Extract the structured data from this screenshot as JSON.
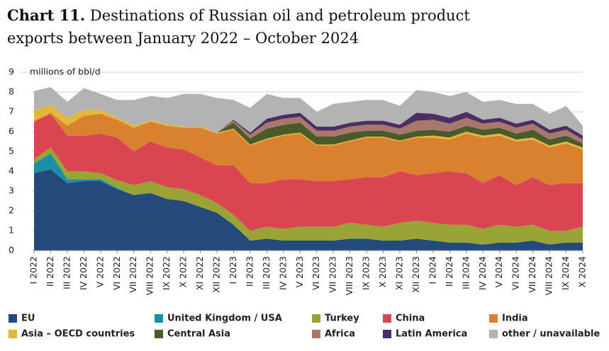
{
  "chart_data": {
    "type": "stacked_area",
    "title_label": "Chart 11.",
    "title": "Destinations of Russian oil and petroleum product exports between January 2022 – October 2024",
    "y_label": "millions of bbl/d",
    "categories": [
      "I 2022",
      "II 2022",
      "III 2022",
      "IV 2022",
      "V 2022",
      "VI 2022",
      "VII 2022",
      "VIII 2022",
      "IX 2022",
      "X 2022",
      "XI 2022",
      "XII 2022",
      "I 2023",
      "II 2023",
      "III 2023",
      "IV 2023",
      "V 2023",
      "VI 2023",
      "VII 2023",
      "VIII 2023",
      "IX 2023",
      "X 2023",
      "XI 2023",
      "XII 2023",
      "I 2024",
      "II 2024",
      "III 2024",
      "IV 2024",
      "V 2024",
      "VI 2024",
      "VII 2024",
      "VIII 2024",
      "IX 2024",
      "X 2024"
    ],
    "ylim": [
      0,
      9
    ],
    "yticks": [
      0,
      1,
      2,
      3,
      4,
      5,
      6,
      7,
      8,
      9
    ],
    "grid": true,
    "series": [
      {
        "name": "EU",
        "color": "#234a7a",
        "values": [
          3.9,
          4.1,
          3.4,
          3.5,
          3.5,
          3.1,
          2.8,
          2.9,
          2.6,
          2.5,
          2.2,
          1.9,
          1.3,
          0.5,
          0.6,
          0.5,
          0.5,
          0.5,
          0.5,
          0.6,
          0.6,
          0.5,
          0.5,
          0.6,
          0.5,
          0.4,
          0.4,
          0.3,
          0.4,
          0.4,
          0.5,
          0.3,
          0.4,
          0.4
        ]
      },
      {
        "name": "United Kingdom / USA",
        "color": "#1a8fa8",
        "values": [
          0.5,
          0.8,
          0.2,
          0.1,
          0.1,
          0.05,
          0,
          0,
          0,
          0,
          0,
          0,
          0,
          0,
          0,
          0,
          0,
          0,
          0,
          0,
          0,
          0,
          0,
          0,
          0,
          0,
          0,
          0,
          0,
          0,
          0,
          0,
          0,
          0
        ]
      },
      {
        "name": "Turkey",
        "color": "#9aa436",
        "values": [
          0.2,
          0.3,
          0.4,
          0.4,
          0.3,
          0.4,
          0.5,
          0.6,
          0.6,
          0.6,
          0.6,
          0.5,
          0.5,
          0.5,
          0.6,
          0.6,
          0.7,
          0.7,
          0.7,
          0.8,
          0.7,
          0.7,
          0.9,
          0.9,
          0.9,
          0.9,
          0.9,
          0.8,
          0.9,
          0.8,
          0.8,
          0.7,
          0.6,
          0.8
        ]
      },
      {
        "name": "China",
        "color": "#d94651",
        "values": [
          1.9,
          1.7,
          1.8,
          1.8,
          2.0,
          2.15,
          1.7,
          2.0,
          2.0,
          2.0,
          1.9,
          1.9,
          2.5,
          2.4,
          2.2,
          2.5,
          2.4,
          2.3,
          2.3,
          2.2,
          2.4,
          2.5,
          2.6,
          2.3,
          2.5,
          2.7,
          2.6,
          2.3,
          2.5,
          2.1,
          2.4,
          2.3,
          2.4,
          2.2
        ]
      },
      {
        "name": "India",
        "color": "#d9812f",
        "values": [
          0.05,
          0.05,
          0.5,
          1.0,
          1.0,
          0.9,
          1.2,
          1.0,
          1.1,
          1.1,
          1.5,
          1.6,
          1.8,
          1.9,
          2.2,
          2.2,
          2.3,
          1.8,
          1.8,
          1.9,
          2.0,
          2.0,
          1.5,
          1.9,
          1.8,
          1.6,
          2.0,
          2.3,
          2.0,
          2.2,
          1.9,
          1.9,
          2.0,
          1.7
        ]
      },
      {
        "name": "Asia – OECD countries",
        "color": "#e4b73a",
        "values": [
          0.5,
          0.4,
          0.4,
          0.3,
          0.2,
          0.1,
          0.1,
          0.1,
          0.05,
          0.05,
          0.05,
          0.05,
          0.05,
          0.05,
          0.05,
          0.05,
          0.05,
          0.05,
          0.05,
          0.05,
          0.05,
          0.05,
          0.05,
          0.05,
          0.1,
          0.1,
          0.1,
          0.1,
          0.1,
          0.1,
          0.1,
          0.1,
          0.1,
          0.1
        ]
      },
      {
        "name": "Central Asia",
        "color": "#4b5a2a",
        "values": [
          0,
          0,
          0,
          0,
          0,
          0,
          0,
          0,
          0,
          0,
          0,
          0,
          0.3,
          0.3,
          0.5,
          0.5,
          0.5,
          0.4,
          0.4,
          0.4,
          0.3,
          0.3,
          0.3,
          0.3,
          0.3,
          0.3,
          0.3,
          0.3,
          0.3,
          0.3,
          0.4,
          0.3,
          0.3,
          0.2
        ]
      },
      {
        "name": "Africa",
        "color": "#a8786c",
        "values": [
          0,
          0,
          0,
          0,
          0,
          0,
          0,
          0,
          0,
          0,
          0,
          0,
          0.1,
          0.2,
          0.3,
          0.3,
          0.3,
          0.3,
          0.3,
          0.3,
          0.3,
          0.3,
          0.3,
          0.5,
          0.5,
          0.4,
          0.4,
          0.3,
          0.3,
          0.3,
          0.3,
          0.3,
          0.3,
          0.2
        ]
      },
      {
        "name": "Latin America",
        "color": "#4b2f63",
        "values": [
          0,
          0,
          0,
          0,
          0,
          0,
          0,
          0,
          0,
          0,
          0,
          0,
          0.05,
          0.1,
          0.2,
          0.2,
          0.2,
          0.2,
          0.2,
          0.2,
          0.2,
          0.2,
          0.2,
          0.4,
          0.3,
          0.3,
          0.3,
          0.2,
          0.2,
          0.2,
          0.2,
          0.2,
          0.2,
          0.2
        ]
      },
      {
        "name": "other / unavailable",
        "color": "#b3b3b3",
        "values": [
          1.0,
          0.9,
          0.8,
          1.1,
          0.8,
          0.9,
          1.3,
          1.2,
          1.35,
          1.65,
          1.65,
          1.75,
          1.0,
          1.25,
          1.25,
          0.85,
          0.75,
          0.75,
          1.15,
          1.05,
          1.05,
          1.05,
          0.95,
          1.15,
          1.1,
          1.1,
          1.0,
          0.9,
          0.9,
          1.0,
          0.8,
          0.8,
          1.0,
          0.5
        ]
      }
    ]
  }
}
